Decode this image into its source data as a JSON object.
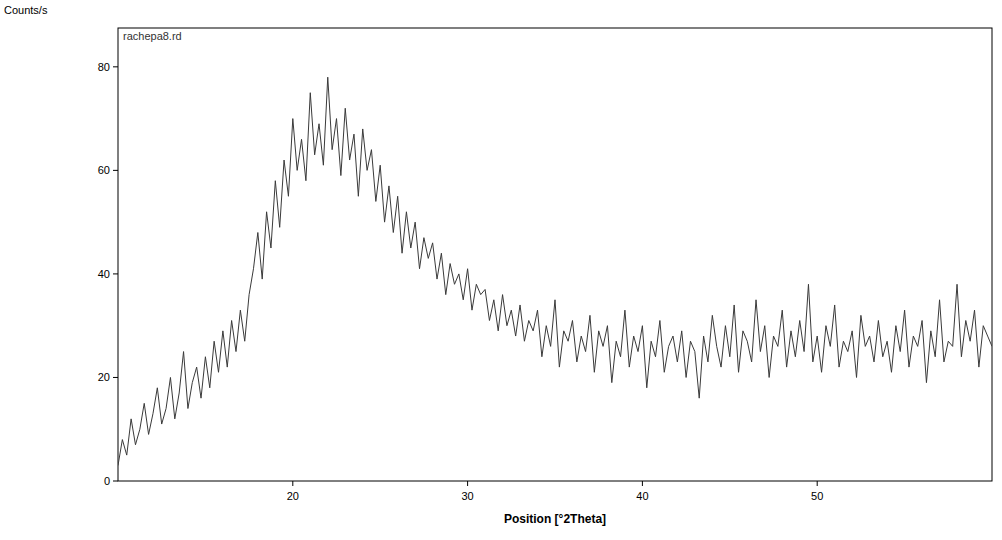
{
  "chart_data": {
    "type": "line",
    "x_label": "Position [°2Theta]",
    "y_label": "Counts/s",
    "x": [
      10,
      10.25,
      10.5,
      10.75,
      11,
      11.25,
      11.5,
      11.75,
      12,
      12.25,
      12.5,
      12.75,
      13,
      13.25,
      13.5,
      13.75,
      14,
      14.25,
      14.5,
      14.75,
      15,
      15.25,
      15.5,
      15.75,
      16,
      16.25,
      16.5,
      16.75,
      17,
      17.25,
      17.5,
      17.75,
      18,
      18.25,
      18.5,
      18.75,
      19,
      19.25,
      19.5,
      19.75,
      20,
      20.25,
      20.5,
      20.75,
      21,
      21.25,
      21.5,
      21.75,
      22,
      22.25,
      22.5,
      22.75,
      23,
      23.25,
      23.5,
      23.75,
      24,
      24.25,
      24.5,
      24.75,
      25,
      25.25,
      25.5,
      25.75,
      26,
      26.25,
      26.5,
      26.75,
      27,
      27.25,
      27.5,
      27.75,
      28,
      28.25,
      28.5,
      28.75,
      29,
      29.25,
      29.5,
      29.75,
      30,
      30.25,
      30.5,
      30.75,
      31,
      31.25,
      31.5,
      31.75,
      32,
      32.25,
      32.5,
      32.75,
      33,
      33.25,
      33.5,
      33.75,
      34,
      34.25,
      34.5,
      34.75,
      35,
      35.25,
      35.5,
      35.75,
      36,
      36.25,
      36.5,
      36.75,
      37,
      37.25,
      37.5,
      37.75,
      38,
      38.25,
      38.5,
      38.75,
      39,
      39.25,
      39.5,
      39.75,
      40,
      40.25,
      40.5,
      40.75,
      41,
      41.25,
      41.5,
      41.75,
      42,
      42.25,
      42.5,
      42.75,
      43,
      43.25,
      43.5,
      43.75,
      44,
      44.25,
      44.5,
      44.75,
      45,
      45.25,
      45.5,
      45.75,
      46,
      46.25,
      46.5,
      46.75,
      47,
      47.25,
      47.5,
      47.75,
      48,
      48.25,
      48.5,
      48.75,
      49,
      49.25,
      49.5,
      49.75,
      50,
      50.25,
      50.5,
      50.75,
      51,
      51.25,
      51.5,
      51.75,
      52,
      52.25,
      52.5,
      52.75,
      53,
      53.25,
      53.5,
      53.75,
      54,
      54.25,
      54.5,
      54.75,
      55,
      55.25,
      55.5,
      55.75,
      56,
      56.25,
      56.5,
      56.75,
      57,
      57.25,
      57.5,
      57.75,
      58,
      58.25,
      58.5,
      58.75,
      59,
      59.25,
      59.5,
      59.75,
      60
    ],
    "series": [
      {
        "name": "rachepa8.rd",
        "color": "#3a3a3a",
        "values": [
          3,
          8,
          5,
          12,
          7,
          10,
          15,
          9,
          13,
          18,
          11,
          14,
          20,
          12,
          17,
          25,
          14,
          19,
          22,
          16,
          24,
          18,
          27,
          21,
          29,
          22,
          31,
          25,
          33,
          27,
          36,
          41,
          48,
          39,
          52,
          45,
          58,
          49,
          62,
          55,
          70,
          60,
          66,
          58,
          75,
          63,
          69,
          61,
          78,
          64,
          70,
          59,
          72,
          62,
          67,
          55,
          68,
          60,
          64,
          54,
          61,
          50,
          57,
          48,
          55,
          44,
          52,
          45,
          50,
          41,
          47,
          43,
          46,
          39,
          44,
          36,
          42,
          38,
          40,
          35,
          41,
          33,
          38,
          36,
          37,
          31,
          35,
          29,
          36,
          30,
          33,
          28,
          34,
          27,
          31,
          29,
          33,
          24,
          30,
          26,
          35,
          22,
          29,
          27,
          31,
          23,
          28,
          25,
          32,
          21,
          29,
          26,
          30,
          19,
          27,
          24,
          33,
          22,
          28,
          25,
          30,
          18,
          27,
          24,
          31,
          21,
          26,
          28,
          23,
          29,
          20,
          27,
          25,
          16,
          28,
          23,
          32,
          26,
          22,
          30,
          24,
          34,
          21,
          29,
          27,
          23,
          35,
          25,
          30,
          20,
          28,
          26,
          33,
          22,
          29,
          24,
          31,
          25,
          38,
          23,
          28,
          21,
          30,
          26,
          34,
          22,
          27,
          25,
          29,
          20,
          32,
          26,
          28,
          23,
          31,
          24,
          27,
          21,
          30,
          25,
          33,
          22,
          28,
          26,
          31,
          19,
          29,
          24,
          35,
          23,
          27,
          26,
          38,
          24,
          31,
          27,
          33,
          22,
          30,
          28,
          26
        ]
      }
    ],
    "xlim": [
      10,
      60
    ],
    "ylim": [
      0,
      87.5
    ],
    "xticks": [
      20,
      30,
      40,
      50
    ],
    "yticks": [
      0,
      20,
      40,
      60,
      80
    ]
  }
}
